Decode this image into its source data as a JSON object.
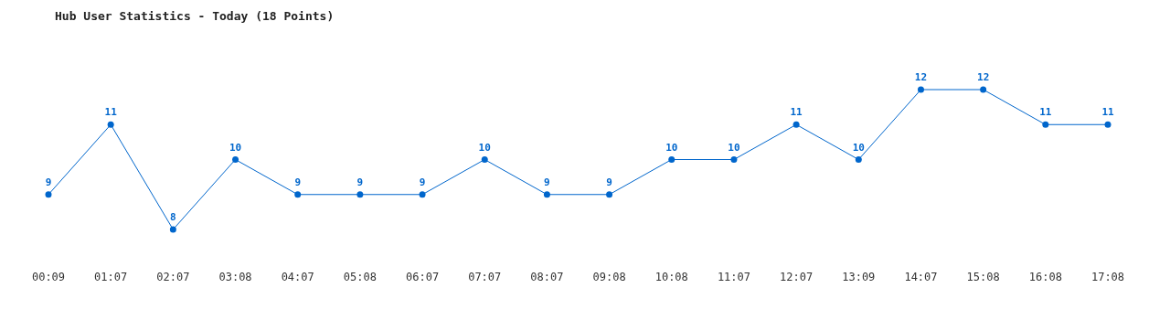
{
  "chart_data": {
    "type": "line",
    "title": "Hub User Statistics - Today (18 Points)",
    "categories": [
      "00:09",
      "01:07",
      "02:07",
      "03:08",
      "04:07",
      "05:08",
      "06:07",
      "07:07",
      "08:07",
      "09:08",
      "10:08",
      "11:07",
      "12:07",
      "13:09",
      "14:07",
      "15:08",
      "16:08",
      "17:08"
    ],
    "series": [
      {
        "color": "#0066cc",
        "values": [
          9,
          11,
          8,
          10,
          9,
          9,
          9,
          10,
          9,
          9,
          10,
          10,
          11,
          10,
          12,
          12,
          11,
          11
        ]
      }
    ],
    "data_labels": true,
    "marker": "circle",
    "line_style": "solid",
    "grid": false
  }
}
